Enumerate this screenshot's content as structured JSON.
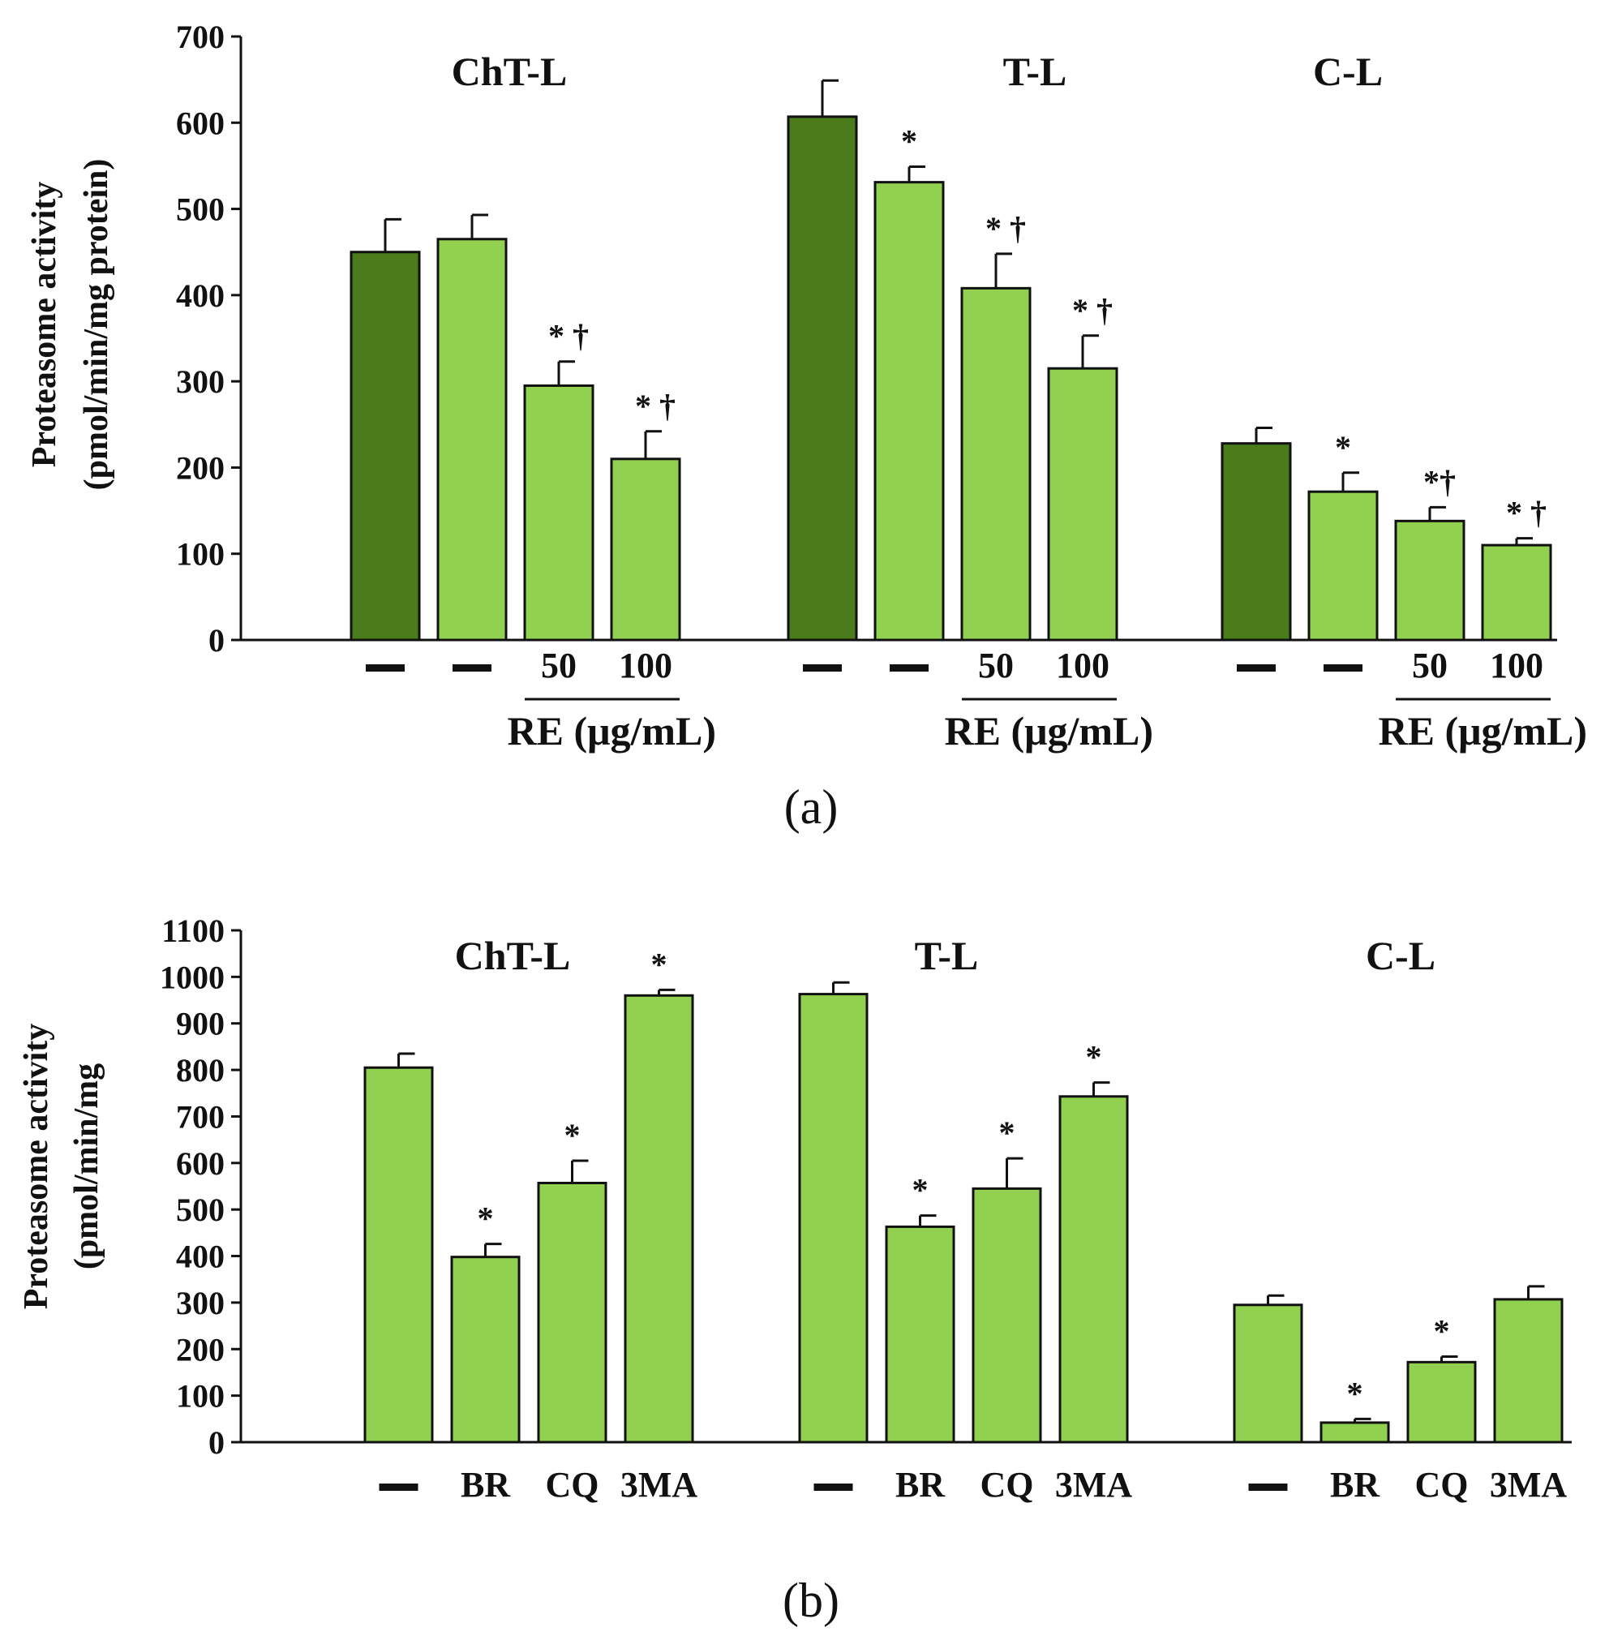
{
  "chart_data": [
    {
      "panel_label": "(a)",
      "type": "bar",
      "ylabel": [
        "Proteasome activity",
        "(pmol/min/mg protein)"
      ],
      "xlabel": "RE (μg/mL)",
      "ylim": [
        0,
        700
      ],
      "yticks": [
        0,
        100,
        200,
        300,
        400,
        500,
        600,
        700
      ],
      "grid": false,
      "group_labels": [
        "ChT-L",
        "T-L",
        "C-L"
      ],
      "condition_labels": [
        "—",
        "—",
        "50",
        "100"
      ],
      "colors": {
        "control": "#4a7c1c",
        "treated": "#92d050"
      },
      "groups": [
        {
          "name": "ChT-L",
          "values": [
            450,
            465,
            295,
            210
          ],
          "errors": [
            38,
            28,
            28,
            32
          ],
          "sig": [
            "",
            "",
            "* †",
            "* †"
          ]
        },
        {
          "name": "T-L",
          "values": [
            607,
            531,
            408,
            315
          ],
          "errors": [
            42,
            18,
            40,
            38
          ],
          "sig": [
            "",
            "*",
            "* †",
            "* †"
          ]
        },
        {
          "name": "C-L",
          "values": [
            228,
            172,
            138,
            110
          ],
          "errors": [
            18,
            22,
            16,
            8
          ],
          "sig": [
            "",
            "*",
            "*†",
            "* †"
          ]
        }
      ]
    },
    {
      "panel_label": "(b)",
      "type": "bar",
      "ylabel": [
        "Proteasome activity",
        "(pmol/min/mg"
      ],
      "ylim": [
        0,
        1100
      ],
      "yticks": [
        0,
        100,
        200,
        300,
        400,
        500,
        600,
        700,
        800,
        900,
        1000,
        1100
      ],
      "grid": false,
      "group_labels": [
        "ChT-L",
        "T-L",
        "C-L"
      ],
      "condition_labels": [
        "—",
        "BR",
        "CQ",
        "3MA"
      ],
      "colors": {
        "treated": "#92d050"
      },
      "groups": [
        {
          "name": "ChT-L",
          "values": [
            805,
            398,
            557,
            960
          ],
          "errors": [
            30,
            28,
            48,
            12
          ],
          "sig": [
            "",
            "*",
            "*",
            "*"
          ]
        },
        {
          "name": "T-L",
          "values": [
            963,
            463,
            545,
            743
          ],
          "errors": [
            25,
            24,
            65,
            30
          ],
          "sig": [
            "",
            "*",
            "*",
            "*"
          ]
        },
        {
          "name": "C-L",
          "values": [
            295,
            42,
            172,
            307
          ],
          "errors": [
            20,
            8,
            12,
            28
          ],
          "sig": [
            "",
            "*",
            "*",
            ""
          ]
        }
      ]
    }
  ]
}
